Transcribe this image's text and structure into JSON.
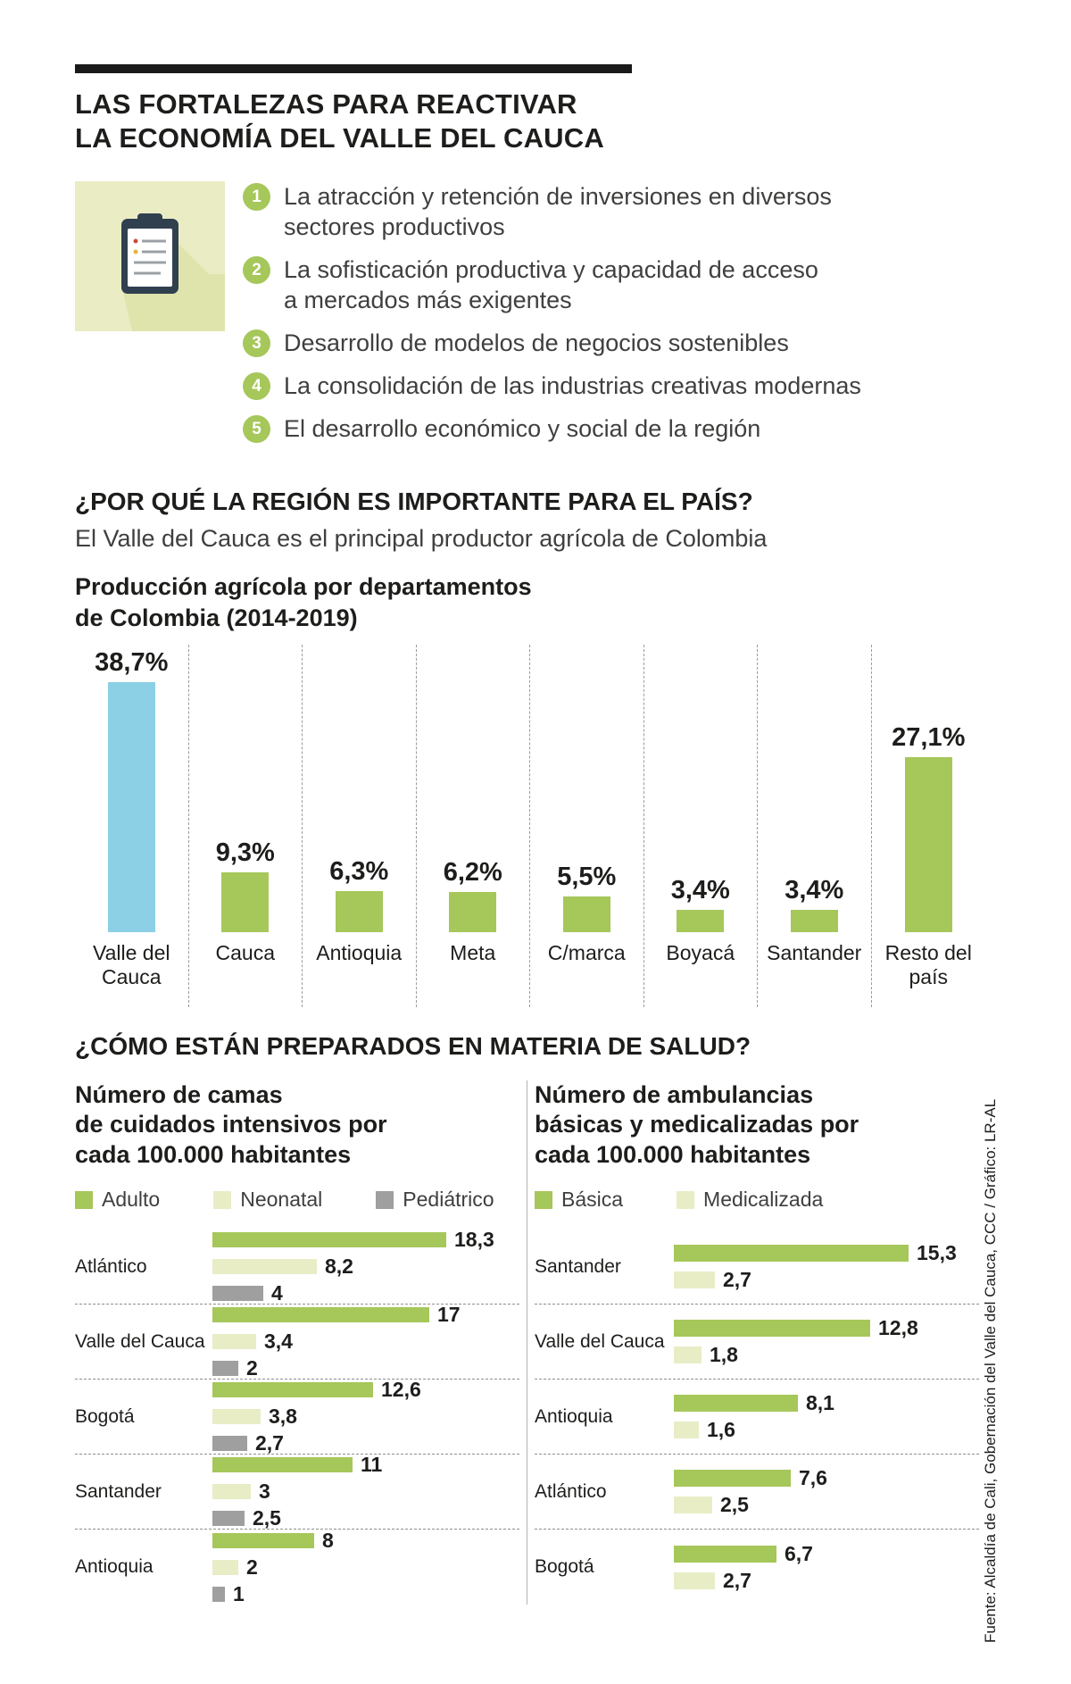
{
  "header": {
    "title": "LAS FORTALEZAS PARA REACTIVAR\nLA ECONOMÍA DEL VALLE DEL CAUCA"
  },
  "strengths": {
    "items": [
      {
        "num": "1",
        "text": "La atracción y retención de inversiones en diversos\nsectores productivos"
      },
      {
        "num": "2",
        "text": "La sofisticación productiva y capacidad de acceso\na mercados más exigentes"
      },
      {
        "num": "3",
        "text": "Desarrollo de modelos de negocios sostenibles"
      },
      {
        "num": "4",
        "text": "La consolidación de las industrias creativas modernas"
      },
      {
        "num": "5",
        "text": "El desarrollo económico y social de la región"
      }
    ]
  },
  "importance": {
    "heading": "¿POR QUÉ LA REGIÓN ES IMPORTANTE PARA EL PAÍS?",
    "subheading": "El Valle del Cauca es el principal productor agrícola de Colombia"
  },
  "health": {
    "heading": "¿CÓMO ESTÁN PREPARADOS EN MATERIA DE SALUD?"
  },
  "source": "Fuente: Alcaldía de Cali, Gobernación del Valle del Cauca, CCC / Gráfico: LR-AL",
  "colors": {
    "green": "#a6c75a",
    "pale_green": "#e8edc6",
    "gray": "#9f9f9f",
    "blue": "#8bd0e4",
    "icon_bg": "#eaedc3",
    "icon_shadow": "#dfe4ad",
    "clipboard_navy": "#31404f",
    "rule_black": "#1a1a1a",
    "divider_gray": "#b3b3b3"
  },
  "chart_data": [
    {
      "type": "bar",
      "orientation": "vertical",
      "title": "Producción agrícola por departamentos\nde Colombia (2014-2019)",
      "categories": [
        "Valle del\nCauca",
        "Cauca",
        "Antioquia",
        "Meta",
        "C/marca",
        "Boyacá",
        "Santander",
        "Resto del\npaís"
      ],
      "values": [
        38.7,
        9.3,
        6.3,
        6.2,
        5.5,
        3.4,
        3.4,
        27.1
      ],
      "value_labels": [
        "38,7%",
        "9,3%",
        "6,3%",
        "6,2%",
        "5,5%",
        "3,4%",
        "3,4%",
        "27,1%"
      ],
      "unit": "%",
      "ylim": [
        0,
        40
      ],
      "bar_color": "#a6c75a",
      "highlight_index": 0,
      "highlight_color": "#8bd0e4",
      "grid": "dashed-vertical-separators",
      "legend": "none"
    },
    {
      "type": "bar",
      "orientation": "horizontal",
      "title": "Número de camas\nde cuidados intensivos por\ncada 100.000 habitantes",
      "categories": [
        "Atlántico",
        "Valle del Cauca",
        "Bogotá",
        "Santander",
        "Antioquia"
      ],
      "series": [
        {
          "name": "Adulto",
          "color": "#a6c75a",
          "values": [
            18.3,
            17,
            12.6,
            11,
            8
          ],
          "labels": [
            "18,3",
            "17",
            "12,6",
            "11",
            "8"
          ]
        },
        {
          "name": "Neonatal",
          "color": "#e8edc6",
          "values": [
            8.2,
            3.4,
            3.8,
            3,
            2
          ],
          "labels": [
            "8,2",
            "3,4",
            "3,8",
            "3",
            "2"
          ]
        },
        {
          "name": "Pediátrico",
          "color": "#9f9f9f",
          "values": [
            4,
            2,
            2.7,
            2.5,
            1
          ],
          "labels": [
            "4",
            "2",
            "2,7",
            "2,5",
            "1"
          ]
        }
      ],
      "xlim": [
        0,
        20
      ],
      "legend_position": "top",
      "grid": "dashed-row-separators"
    },
    {
      "type": "bar",
      "orientation": "horizontal",
      "title": "Número de ambulancias\nbásicas y medicalizadas por\ncada 100.000 habitantes",
      "categories": [
        "Santander",
        "Valle del Cauca",
        "Antioquia",
        "Atlántico",
        "Bogotá"
      ],
      "series": [
        {
          "name": "Básica",
          "color": "#a6c75a",
          "values": [
            15.3,
            12.8,
            8.1,
            7.6,
            6.7
          ],
          "labels": [
            "15,3",
            "12,8",
            "8,1",
            "7,6",
            "6,7"
          ]
        },
        {
          "name": "Medicalizada",
          "color": "#e8edc6",
          "values": [
            2.7,
            1.8,
            1.6,
            2.5,
            2.7
          ],
          "labels": [
            "2,7",
            "1,8",
            "1,6",
            "2,5",
            "2,7"
          ]
        }
      ],
      "xlim": [
        0,
        16
      ],
      "legend_position": "top",
      "grid": "dashed-row-separators"
    }
  ]
}
